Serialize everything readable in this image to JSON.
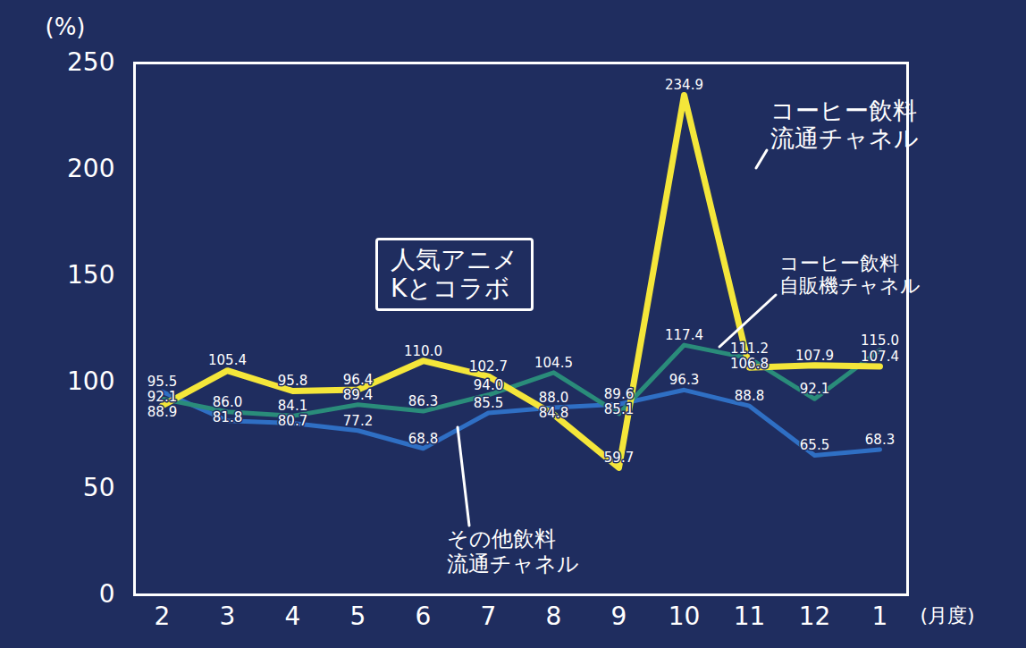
{
  "chart_data": {
    "type": "line",
    "x_label": "(月度)",
    "y_label": "(%)",
    "categories": [
      "2",
      "3",
      "4",
      "5",
      "6",
      "7",
      "8",
      "9",
      "10",
      "11",
      "12",
      "1"
    ],
    "ylim": [
      0,
      250
    ],
    "yticks": [
      0,
      50,
      100,
      150,
      200,
      250
    ],
    "data_labels": true,
    "annotations": [
      {
        "text": "人気アニメ\nKとコラボ"
      }
    ],
    "series": [
      {
        "name": "その他飲料\n流通チャネル",
        "color": "#2f6fc4",
        "values": [
          95.5,
          81.8,
          80.7,
          77.2,
          68.8,
          85.5,
          88.0,
          89.6,
          96.3,
          88.8,
          65.5,
          68.3
        ],
        "value_labels": [
          "95.5",
          "81.8",
          "80.7",
          "77.2",
          "68.8",
          "85.5",
          "88.0",
          "89.6",
          "96.3",
          "88.8",
          "65.5",
          "68.3"
        ]
      },
      {
        "name": "コーヒー飲料\n自販機チャネル",
        "color": "#2a8c7a",
        "values": [
          92.1,
          86.0,
          84.1,
          89.4,
          86.3,
          94.0,
          104.5,
          85.1,
          117.4,
          111.2,
          92.1,
          115.0
        ],
        "value_labels": [
          "92.1",
          "86.0",
          "84.1",
          "89.4",
          "86.3",
          "94.0",
          "104.5",
          "85.1",
          "117.4",
          "111.2",
          "92.1",
          "115.0"
        ]
      },
      {
        "name": "コーヒー飲料\n流通チャネル",
        "color": "#f4e63a",
        "values": [
          88.9,
          105.4,
          95.8,
          96.4,
          110.0,
          102.7,
          84.8,
          59.7,
          234.9,
          106.8,
          107.9,
          107.4
        ],
        "value_labels": [
          "88.9",
          "105.4",
          "95.8",
          "96.4",
          "110.0",
          "102.7",
          "84.8",
          "59.7",
          "234.9",
          "106.8",
          "107.9",
          "107.4"
        ]
      }
    ]
  }
}
